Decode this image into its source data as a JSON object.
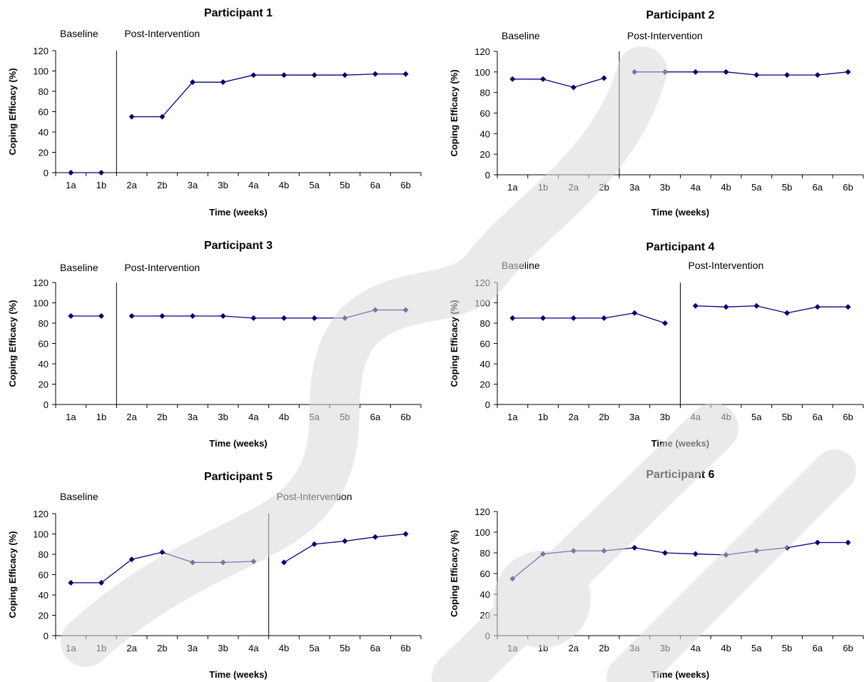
{
  "chart_data": [
    {
      "type": "line",
      "title": "Participant 1",
      "xlabel": "Time (weeks)",
      "ylabel": "Coping Efficacy (%)",
      "ylim": [
        0,
        120
      ],
      "yticks": [
        "0",
        "20",
        "40",
        "60",
        "80",
        "100",
        "120"
      ],
      "categories": [
        "1a",
        "1b",
        "2a",
        "2b",
        "3a",
        "3b",
        "4a",
        "4b",
        "5a",
        "5b",
        "6a",
        "6b"
      ],
      "values": [
        0,
        0,
        55,
        55,
        89,
        89,
        96,
        96,
        96,
        96,
        97,
        97
      ],
      "phase_labels": [
        "Baseline",
        "Post-Intervention"
      ],
      "phase_change_after": "1b"
    },
    {
      "type": "line",
      "title": "Participant 2",
      "xlabel": "Time (weeks)",
      "ylabel": "Coping Efficacy (%)",
      "ylim": [
        0,
        120
      ],
      "yticks": [
        "0",
        "20",
        "40",
        "60",
        "80",
        "100",
        "120"
      ],
      "categories": [
        "1a",
        "1b",
        "2a",
        "2b",
        "3a",
        "3b",
        "4a",
        "4b",
        "5a",
        "5b",
        "6a",
        "6b"
      ],
      "values": [
        93,
        93,
        85,
        94,
        100,
        100,
        100,
        100,
        97,
        97,
        97,
        100
      ],
      "phase_labels": [
        "Baseline",
        "Post-Intervention"
      ],
      "phase_change_after": "2b"
    },
    {
      "type": "line",
      "title": "Participant 3",
      "xlabel": "Time (weeks)",
      "ylabel": "Coping Efficacy (%)",
      "ylim": [
        0,
        120
      ],
      "yticks": [
        "0",
        "20",
        "40",
        "60",
        "80",
        "100",
        "120"
      ],
      "categories": [
        "1a",
        "1b",
        "2a",
        "2b",
        "3a",
        "3b",
        "4a",
        "4b",
        "5a",
        "5b",
        "6a",
        "6b"
      ],
      "values": [
        87,
        87,
        87,
        87,
        87,
        87,
        85,
        85,
        85,
        85,
        93,
        93
      ],
      "phase_labels": [
        "Baseline",
        "Post-Intervention"
      ],
      "phase_change_after": "1b"
    },
    {
      "type": "line",
      "title": "Participant 4",
      "xlabel": "Time (weeks)",
      "ylabel": "Coping Efficacy (%)",
      "ylim": [
        0,
        120
      ],
      "yticks": [
        "0",
        "20",
        "40",
        "60",
        "80",
        "100",
        "120"
      ],
      "categories": [
        "1a",
        "1b",
        "2a",
        "2b",
        "3a",
        "3b",
        "4a",
        "4b",
        "5a",
        "5b",
        "6a",
        "6b"
      ],
      "values": [
        85,
        85,
        85,
        85,
        90,
        80,
        97,
        96,
        97,
        90,
        96,
        96
      ],
      "phase_labels": [
        "Baseline",
        "Post-Intervention"
      ],
      "phase_change_after": "3b"
    },
    {
      "type": "line",
      "title": "Participant 5",
      "xlabel": "Time (weeks)",
      "ylabel": "Coping Efficacy (%)",
      "ylim": [
        0,
        120
      ],
      "yticks": [
        "0",
        "20",
        "40",
        "60",
        "80",
        "100",
        "120"
      ],
      "categories": [
        "1a",
        "1b",
        "2a",
        "2b",
        "3a",
        "3b",
        "4a",
        "4b",
        "5a",
        "5b",
        "6a",
        "6b"
      ],
      "values": [
        52,
        52,
        75,
        82,
        72,
        72,
        73,
        72,
        90,
        93,
        97,
        100
      ],
      "phase_labels": [
        "Baseline",
        "Post-Intervention"
      ],
      "phase_change_after": "4a"
    },
    {
      "type": "line",
      "title": "Participant 6",
      "xlabel": "Time (weeks)",
      "ylabel": "Coping Efficacy (%)",
      "ylim": [
        0,
        120
      ],
      "yticks": [
        "0",
        "20",
        "40",
        "60",
        "80",
        "100",
        "120"
      ],
      "categories": [
        "1a",
        "1b",
        "2a",
        "2b",
        "3a",
        "3b",
        "4a",
        "4b",
        "5a",
        "5b",
        "6a",
        "6b"
      ],
      "values": [
        55,
        79,
        82,
        82,
        85,
        80,
        79,
        78,
        82,
        85,
        90,
        90
      ],
      "phase_labels": [],
      "phase_change_after": null
    }
  ],
  "style": {
    "line_color": "#000080",
    "marker_color": "#00006a",
    "axis_color": "#000000",
    "watermark_color": "#d9d9d9"
  }
}
